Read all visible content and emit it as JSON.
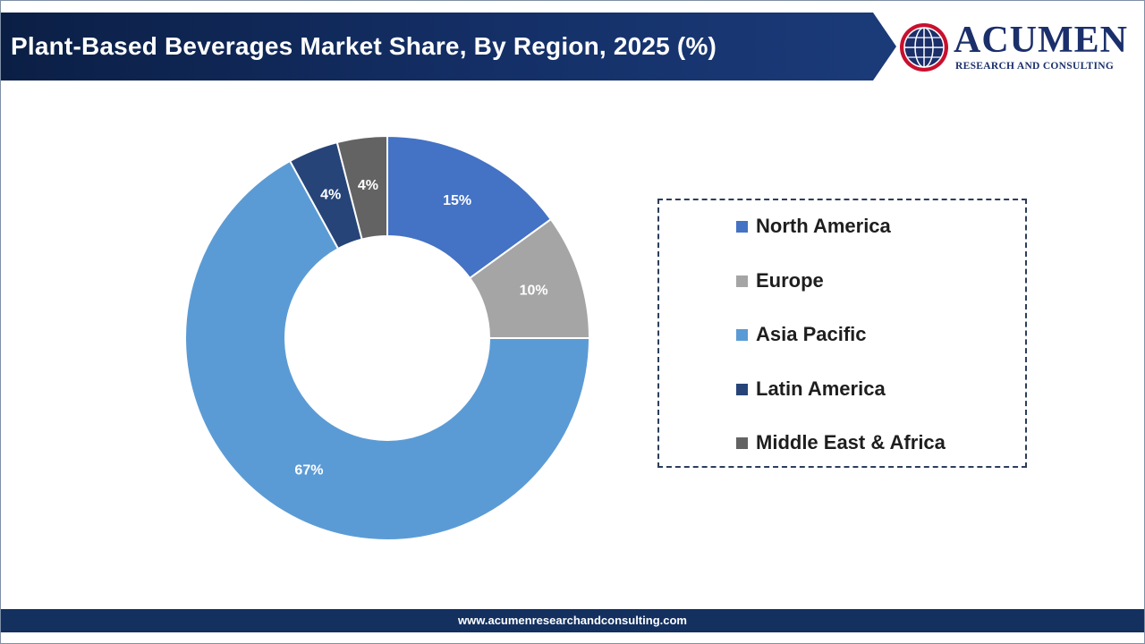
{
  "header": {
    "title": "Plant-Based Beverages Market Share, By Region, 2025 (%)"
  },
  "logo": {
    "name": "ACUMEN",
    "tagline": "RESEARCH AND CONSULTING"
  },
  "footer": {
    "url": "www.acumenresearchandconsulting.com"
  },
  "colors": {
    "north_america": "#4472c4",
    "europe": "#a5a5a5",
    "asia_pacific": "#5b9bd5",
    "latin_america": "#264478",
    "middle_east_africa": "#636363",
    "header_bg": "#0b1f45",
    "footer_bg": "#13305f"
  },
  "chart_data": {
    "type": "pie",
    "donut": true,
    "legend_position": "right",
    "categories": [
      "North America",
      "Europe",
      "Asia Pacific",
      "Latin America",
      "Middle East & Africa"
    ],
    "values": [
      15,
      10,
      67,
      4,
      4
    ],
    "labels": [
      "15%",
      "10%",
      "67%",
      "4%",
      "4%"
    ],
    "colors": [
      "#4472c4",
      "#a5a5a5",
      "#5b9bd5",
      "#264478",
      "#636363"
    ]
  }
}
